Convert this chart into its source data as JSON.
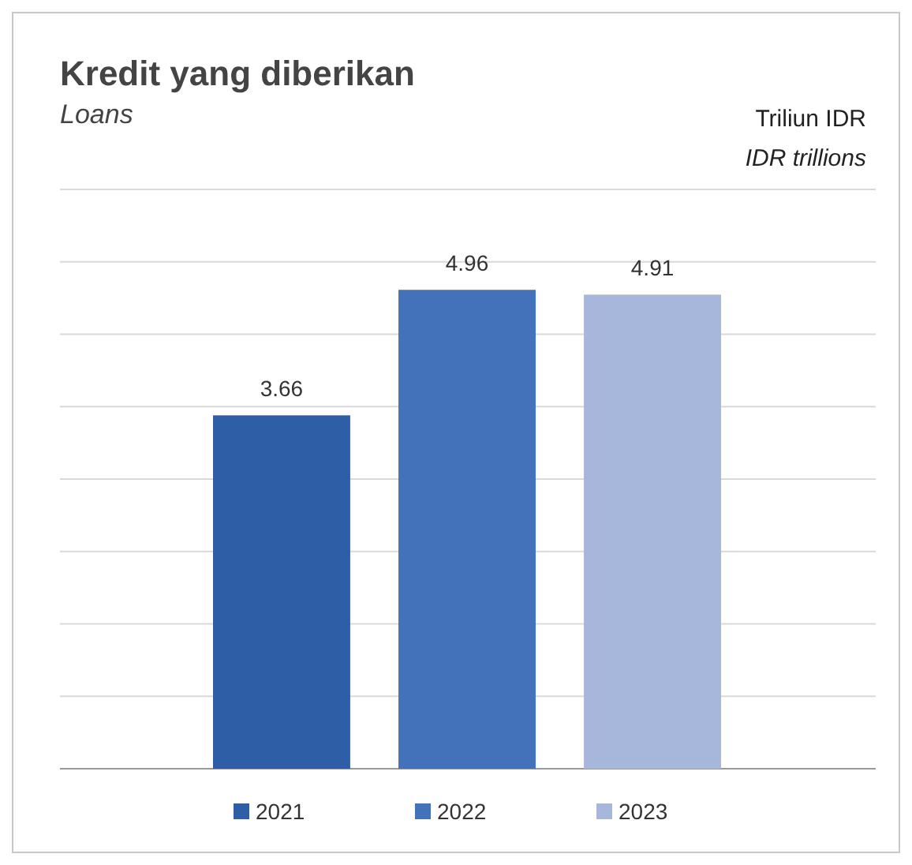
{
  "chart_data": {
    "type": "bar",
    "title": "Kredit yang diberikan",
    "subtitle": "Loans",
    "annotations": [
      "Triliun IDR",
      "IDR trillions"
    ],
    "categories": [
      null,
      null,
      null
    ],
    "series": [
      {
        "name": "2021",
        "color": "#2e5ea5",
        "values": [
          3.66,
          null,
          null
        ]
      },
      {
        "name": "2022",
        "color": "#4472ba",
        "values": [
          null,
          4.96,
          null
        ]
      },
      {
        "name": "2023",
        "color": "#a7b6db",
        "values": [
          null,
          null,
          4.91
        ]
      }
    ],
    "stacked": true,
    "ylim": [
      0,
      6
    ],
    "yticks": [
      {
        "value": 0,
        "label": null
      },
      {
        "value": 0.75,
        "label": null
      },
      {
        "value": 1.5,
        "label": null
      },
      {
        "value": 2.25,
        "label": null
      },
      {
        "value": 3,
        "label": null
      },
      {
        "value": 3.75,
        "label": null
      },
      {
        "value": 4.5,
        "label": null
      },
      {
        "value": 5.25,
        "label": null
      },
      {
        "value": 6,
        "label": null
      }
    ],
    "grid": "y",
    "data_labels": true,
    "legend": "bottom"
  }
}
